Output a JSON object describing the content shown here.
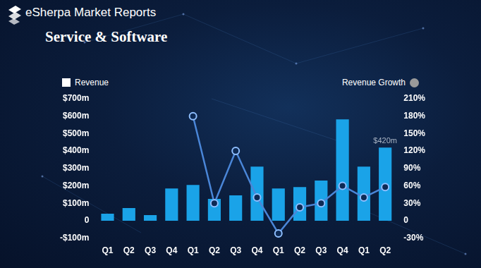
{
  "chart_data": {
    "type": "bar",
    "title": "eSherpa Market Reports",
    "subtitle": "Service & Software",
    "categories": [
      "Q1",
      "Q2",
      "Q3",
      "Q4",
      "Q1",
      "Q2",
      "Q3",
      "Q4",
      "Q1",
      "Q2",
      "Q3",
      "Q4",
      "Q1",
      "Q2"
    ],
    "series": [
      {
        "name": "Revenue",
        "type": "bar",
        "color": "#1aa3e8",
        "values": [
          40,
          72,
          32,
          185,
          205,
          125,
          145,
          310,
          185,
          193,
          230,
          582,
          310,
          420
        ],
        "value_labels": [
          null,
          null,
          null,
          null,
          null,
          null,
          null,
          null,
          null,
          null,
          null,
          null,
          null,
          "$420m"
        ]
      },
      {
        "name": "Revenue Growth",
        "type": "line",
        "color": "#4a86d8",
        "marker": "circle",
        "axis": "y2",
        "values": [
          null,
          null,
          null,
          null,
          180,
          30,
          120,
          40,
          -22,
          23,
          30,
          60,
          40,
          58
        ]
      }
    ],
    "ylim": [
      -100,
      700
    ],
    "yticks": [
      {
        "value": -100,
        "label": "-$100m"
      },
      0,
      {
        "value": 100,
        "label": "$100m"
      },
      {
        "value": 200,
        "label": "$200m"
      },
      {
        "value": 300,
        "label": "$300m"
      },
      {
        "value": 400,
        "label": "$400m"
      },
      {
        "value": 500,
        "label": "$500m"
      },
      {
        "value": 600,
        "label": "$600m"
      },
      {
        "value": 700,
        "label": "$700m"
      }
    ],
    "y2lim": [
      -30,
      210
    ],
    "y2ticks": [
      {
        "value": -30,
        "label": "-30%"
      },
      0,
      {
        "value": 30,
        "label": "30%"
      },
      {
        "value": 60,
        "label": "60%"
      },
      {
        "value": 90,
        "label": "90%"
      },
      {
        "value": 120,
        "label": "120%"
      },
      {
        "value": 150,
        "label": "150%"
      },
      {
        "value": 180,
        "label": "180%"
      },
      {
        "value": 210,
        "label": "210%"
      }
    ],
    "grid": false,
    "legend": "top"
  }
}
